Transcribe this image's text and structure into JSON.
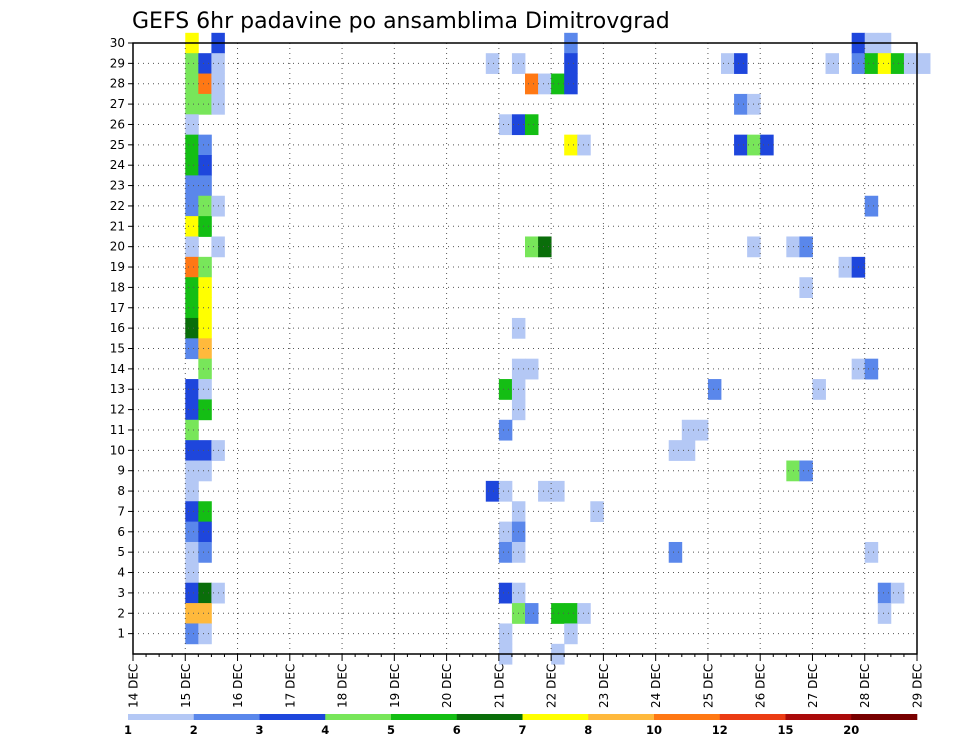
{
  "chart_data": {
    "type": "heatmap",
    "title": "GEFS 6hr padavine po ansamblima Dimitrovgrad",
    "xlabel": "",
    "ylabel": "",
    "x_ticks": [
      "14 DEC",
      "15 DEC",
      "16 DEC",
      "17 DEC",
      "18 DEC",
      "19 DEC",
      "20 DEC",
      "21 DEC",
      "22 DEC",
      "23 DEC",
      "24 DEC",
      "25 DEC",
      "26 DEC",
      "27 DEC",
      "28 DEC",
      "29 DEC"
    ],
    "xlim_days": [
      14,
      29
    ],
    "step_hours": 6,
    "y_ticks": [
      1,
      2,
      3,
      4,
      5,
      6,
      7,
      8,
      9,
      10,
      11,
      12,
      13,
      14,
      15,
      16,
      17,
      18,
      19,
      20,
      21,
      22,
      23,
      24,
      25,
      26,
      27,
      28,
      29,
      30
    ],
    "ylim": [
      0,
      30
    ],
    "grid": true,
    "legend_position": "bottom",
    "colorbar": {
      "labels": [
        "1",
        "2",
        "3",
        "4",
        "5",
        "6",
        "7",
        "8",
        "10",
        "12",
        "15",
        "20"
      ],
      "colors": [
        "#b4c8f5",
        "#5a87eb",
        "#1e46dc",
        "#78e65a",
        "#14be14",
        "#0a6e0a",
        "#ffff00",
        "#ffb93c",
        "#ff7814",
        "#eb3c14",
        "#aa0a0a",
        "#780000"
      ]
    },
    "cells_note": "each cell: [member, time step index since 14 DEC 00Z (6 h steps), color class 1-12]",
    "cells": [
      [
        30,
        4,
        7
      ],
      [
        30,
        6,
        3
      ],
      [
        30,
        33,
        2
      ],
      [
        30,
        55,
        3
      ],
      [
        30,
        56,
        1
      ],
      [
        30,
        57,
        1
      ],
      [
        29,
        4,
        4
      ],
      [
        29,
        5,
        3
      ],
      [
        29,
        6,
        1
      ],
      [
        29,
        27,
        1
      ],
      [
        29,
        29,
        1
      ],
      [
        29,
        33,
        3
      ],
      [
        29,
        45,
        1
      ],
      [
        29,
        46,
        3
      ],
      [
        29,
        53,
        1
      ],
      [
        29,
        55,
        2
      ],
      [
        29,
        56,
        5
      ],
      [
        29,
        57,
        7
      ],
      [
        29,
        58,
        5
      ],
      [
        29,
        59,
        1
      ],
      [
        29,
        60,
        1
      ],
      [
        28,
        4,
        4
      ],
      [
        28,
        5,
        9
      ],
      [
        28,
        6,
        1
      ],
      [
        28,
        30,
        9
      ],
      [
        28,
        31,
        1
      ],
      [
        28,
        32,
        5
      ],
      [
        28,
        33,
        3
      ],
      [
        27,
        4,
        4
      ],
      [
        27,
        5,
        4
      ],
      [
        27,
        6,
        1
      ],
      [
        27,
        46,
        2
      ],
      [
        27,
        47,
        1
      ],
      [
        26,
        4,
        1
      ],
      [
        26,
        28,
        1
      ],
      [
        26,
        29,
        3
      ],
      [
        26,
        30,
        5
      ],
      [
        25,
        4,
        5
      ],
      [
        25,
        5,
        2
      ],
      [
        25,
        33,
        7
      ],
      [
        25,
        34,
        1
      ],
      [
        25,
        46,
        3
      ],
      [
        25,
        47,
        4
      ],
      [
        25,
        48,
        3
      ],
      [
        24,
        4,
        5
      ],
      [
        24,
        5,
        3
      ],
      [
        23,
        4,
        2
      ],
      [
        23,
        5,
        2
      ],
      [
        22,
        4,
        2
      ],
      [
        22,
        5,
        4
      ],
      [
        22,
        6,
        1
      ],
      [
        22,
        56,
        2
      ],
      [
        21,
        4,
        7
      ],
      [
        21,
        5,
        5
      ],
      [
        20,
        4,
        1
      ],
      [
        20,
        6,
        1
      ],
      [
        20,
        30,
        4
      ],
      [
        20,
        31,
        6
      ],
      [
        20,
        47,
        1
      ],
      [
        20,
        50,
        1
      ],
      [
        20,
        51,
        2
      ],
      [
        19,
        4,
        9
      ],
      [
        19,
        5,
        4
      ],
      [
        19,
        54,
        1
      ],
      [
        19,
        55,
        3
      ],
      [
        18,
        4,
        5
      ],
      [
        18,
        5,
        7
      ],
      [
        18,
        51,
        1
      ],
      [
        17,
        4,
        5
      ],
      [
        17,
        5,
        7
      ],
      [
        16,
        4,
        6
      ],
      [
        16,
        5,
        7
      ],
      [
        16,
        29,
        1
      ],
      [
        15,
        4,
        2
      ],
      [
        15,
        5,
        8
      ],
      [
        14,
        5,
        4
      ],
      [
        14,
        29,
        1
      ],
      [
        14,
        30,
        1
      ],
      [
        14,
        55,
        1
      ],
      [
        14,
        56,
        2
      ],
      [
        13,
        4,
        3
      ],
      [
        13,
        5,
        1
      ],
      [
        13,
        28,
        5
      ],
      [
        13,
        29,
        1
      ],
      [
        13,
        44,
        2
      ],
      [
        13,
        52,
        1
      ],
      [
        12,
        4,
        3
      ],
      [
        12,
        5,
        5
      ],
      [
        12,
        29,
        1
      ],
      [
        11,
        4,
        4
      ],
      [
        11,
        28,
        2
      ],
      [
        11,
        42,
        1
      ],
      [
        11,
        43,
        1
      ],
      [
        10,
        4,
        3
      ],
      [
        10,
        5,
        3
      ],
      [
        10,
        6,
        1
      ],
      [
        10,
        41,
        1
      ],
      [
        10,
        42,
        1
      ],
      [
        9,
        4,
        1
      ],
      [
        9,
        5,
        1
      ],
      [
        9,
        50,
        4
      ],
      [
        9,
        51,
        2
      ],
      [
        8,
        4,
        1
      ],
      [
        8,
        27,
        3
      ],
      [
        8,
        28,
        1
      ],
      [
        8,
        31,
        1
      ],
      [
        8,
        32,
        1
      ],
      [
        7,
        4,
        3
      ],
      [
        7,
        5,
        5
      ],
      [
        7,
        29,
        1
      ],
      [
        7,
        35,
        1
      ],
      [
        6,
        4,
        2
      ],
      [
        6,
        5,
        3
      ],
      [
        6,
        28,
        1
      ],
      [
        6,
        29,
        2
      ],
      [
        5,
        4,
        1
      ],
      [
        5,
        5,
        2
      ],
      [
        5,
        28,
        2
      ],
      [
        5,
        29,
        1
      ],
      [
        5,
        41,
        2
      ],
      [
        5,
        56,
        1
      ],
      [
        4,
        4,
        1
      ],
      [
        3,
        4,
        3
      ],
      [
        3,
        5,
        6
      ],
      [
        3,
        6,
        1
      ],
      [
        3,
        28,
        3
      ],
      [
        3,
        29,
        1
      ],
      [
        3,
        57,
        2
      ],
      [
        3,
        58,
        1
      ],
      [
        2,
        4,
        8
      ],
      [
        2,
        5,
        8
      ],
      [
        2,
        29,
        4
      ],
      [
        2,
        30,
        2
      ],
      [
        2,
        32,
        5
      ],
      [
        2,
        33,
        5
      ],
      [
        2,
        34,
        1
      ],
      [
        2,
        57,
        1
      ],
      [
        1,
        4,
        2
      ],
      [
        1,
        5,
        1
      ],
      [
        1,
        28,
        1
      ],
      [
        1,
        33,
        1
      ],
      [
        0,
        28,
        1
      ],
      [
        0,
        32,
        1
      ]
    ]
  }
}
